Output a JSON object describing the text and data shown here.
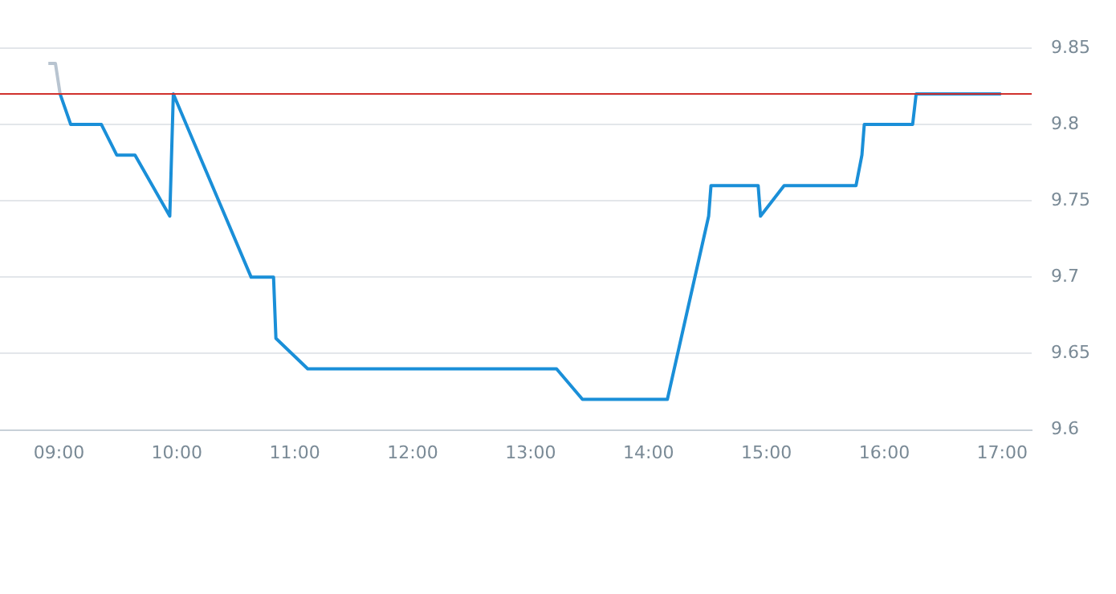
{
  "chart_data": {
    "type": "line",
    "xlim": [
      8.5,
      17.25
    ],
    "ylim": [
      9.6,
      9.85
    ],
    "xticks": [
      {
        "value": 9,
        "label": "09:00"
      },
      {
        "value": 10,
        "label": "10:00"
      },
      {
        "value": 11,
        "label": "11:00"
      },
      {
        "value": 12,
        "label": "12:00"
      },
      {
        "value": 13,
        "label": "13:00"
      },
      {
        "value": 14,
        "label": "14:00"
      },
      {
        "value": 15,
        "label": "15:00"
      },
      {
        "value": 16,
        "label": "16:00"
      },
      {
        "value": 17,
        "label": "17:00"
      }
    ],
    "yticks": [
      {
        "value": 9.6,
        "label": "9.6"
      },
      {
        "value": 9.65,
        "label": "9.65"
      },
      {
        "value": 9.7,
        "label": "9.7"
      },
      {
        "value": 9.75,
        "label": "9.75"
      },
      {
        "value": 9.8,
        "label": "9.8"
      },
      {
        "value": 9.85,
        "label": "9.85"
      }
    ],
    "grid": "y",
    "legend": false,
    "marker": "none",
    "line_style": "solid",
    "ref_lines": [
      {
        "axis": "y",
        "value": 9.82,
        "color": "#d0312d"
      }
    ],
    "series": [
      {
        "color": "#b8c4d0",
        "x": [
          8.91,
          8.97,
          9.01
        ],
        "values": [
          9.84,
          9.84,
          9.82
        ]
      },
      {
        "color": "#1a8fd8",
        "x": [
          9.01,
          9.1,
          9.36,
          9.49,
          9.645,
          9.94,
          9.97,
          10.63,
          10.82,
          10.84,
          11.11,
          13.22,
          13.44,
          14.16,
          14.51,
          14.53,
          14.93,
          14.95,
          15.15,
          15.76,
          15.81,
          15.83,
          16.24,
          16.27,
          16.99
        ],
        "values": [
          9.82,
          9.8,
          9.8,
          9.78,
          9.78,
          9.74,
          9.82,
          9.7,
          9.7,
          9.66,
          9.64,
          9.64,
          9.62,
          9.62,
          9.74,
          9.76,
          9.76,
          9.74,
          9.76,
          9.76,
          9.78,
          9.8,
          9.8,
          9.82,
          9.82
        ]
      }
    ]
  }
}
